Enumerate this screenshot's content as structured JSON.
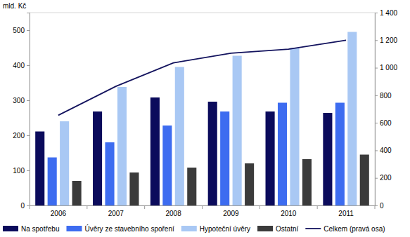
{
  "chart_data": {
    "type": "bar",
    "y_label": "mld. Kč",
    "categories": [
      "2006",
      "2007",
      "2008",
      "2009",
      "2010",
      "2011"
    ],
    "series": [
      {
        "name": "Na spotřebu",
        "type": "bar",
        "color": "#0b0b5c",
        "values": [
          211,
          268,
          308,
          296,
          268,
          264
        ]
      },
      {
        "name": "Úvěry ze stavebního spoření",
        "type": "bar",
        "color": "#3d6cf0",
        "values": [
          137,
          180,
          228,
          268,
          293,
          293
        ]
      },
      {
        "name": "Hypoteční úvěry",
        "type": "bar",
        "color": "#a9c8f4",
        "values": [
          240,
          338,
          395,
          427,
          450,
          495
        ]
      },
      {
        "name": "Ostatní",
        "type": "bar",
        "color": "#3b3b3b",
        "values": [
          70,
          94,
          108,
          120,
          132,
          145
        ]
      },
      {
        "name": "Celkem (pravá osa)",
        "type": "line",
        "axis": "y2",
        "color": "#13135e",
        "line_style": "solid",
        "values": [
          655,
          865,
          1035,
          1105,
          1135,
          1200
        ]
      }
    ],
    "ylim": [
      0,
      550
    ],
    "yticks": [
      0,
      100,
      200,
      300,
      400,
      500
    ],
    "y2lim": [
      0,
      1400
    ],
    "y2ticks": [
      0,
      200,
      400,
      600,
      800,
      {
        "value": 1000,
        "label": "1 000"
      },
      {
        "value": 1200,
        "label": "1 200"
      },
      {
        "value": 1400,
        "label": "1 400"
      }
    ],
    "grid": false,
    "legend": "bottom"
  }
}
